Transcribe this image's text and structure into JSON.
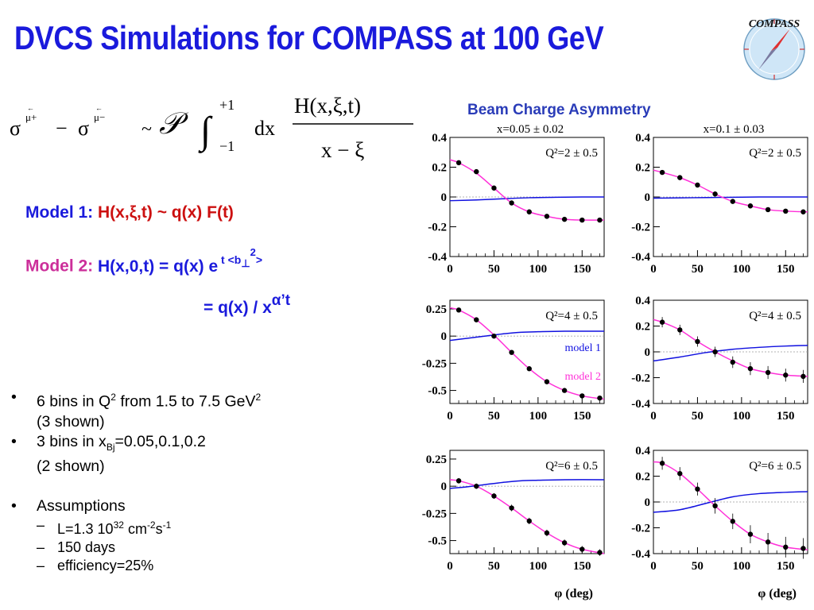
{
  "slide": {
    "title": "DVCS Simulations for COMPASS at 100 GeV",
    "logo_text": "COMPASS",
    "chart_header": "Beam Charge Asymmetry",
    "formula": {
      "sigma": "σ",
      "mu_plus": "μ+",
      "mu_minus": "μ−",
      "minus": "−",
      "arrow": "←",
      "approx": "~",
      "principal": "𝒫",
      "integral": "∫",
      "upper": "+1",
      "lower": "−1",
      "dx": "dx",
      "numerator": "H(x,ξ,t)",
      "denominator": "x − ξ"
    },
    "model1": {
      "label": "Model 1:",
      "expr": "H(x,ξ,t) ~ q(x) F(t)"
    },
    "model2": {
      "label": "Model 2:",
      "expr": "H(x,0,t) = q(x) e",
      "exp_prefix": "t <b",
      "exp_perp": "⊥",
      "exp_sq": "2",
      "exp_suffix": ">",
      "line2": "= q(x) / x",
      "line2_exp": "α’t"
    },
    "bullets": [
      {
        "dot": "•",
        "text_a": "6 bins in Q",
        "sup": "2",
        "text_b": " from 1.5 to 7.5 GeV",
        "sup2": "2",
        "line2": "(3 shown)"
      },
      {
        "dot": "•",
        "text_a": "3 bins in x",
        "sub": "Bj",
        "text_b": "=0.05,0.1,0.2",
        "line2": "(2 shown)"
      },
      {
        "dot": "•",
        "text": "Assumptions"
      }
    ],
    "sub_bullets": [
      {
        "dash": "–",
        "a": "L=1.3 10",
        "sup": "32",
        "b": " cm",
        "sup2": "-2",
        "c": "s",
        "sup3": "-1"
      },
      {
        "dash": "–",
        "a": "150 days"
      },
      {
        "dash": "–",
        "a": "efficiency=25%"
      }
    ]
  },
  "colors": {
    "title": "#1a1adc",
    "model1": "#1010e0",
    "model2": "#ff30d8",
    "points": "#000000",
    "guide": "#9a9a9a"
  },
  "chart_data": [
    {
      "type": "scatter",
      "panel": "row1-left",
      "xlabel": "",
      "xlim": [
        0,
        175
      ],
      "xticks": [
        0,
        50,
        100,
        150
      ],
      "ylim": [
        -0.4,
        0.4
      ],
      "yticks": [
        -0.4,
        -0.2,
        0,
        0.2,
        0.4
      ],
      "yticklabels": [
        "-0.4",
        "-0.2",
        "0",
        "0.2",
        "0.4"
      ],
      "top_label": "x=0.05 ± 0.02",
      "q2_label": "Q²=2 ± 0.5",
      "model1": {
        "x": [
          0,
          30,
          60,
          90,
          120,
          150,
          175
        ],
        "y": [
          -0.025,
          -0.02,
          -0.012,
          -0.005,
          -0.002,
          0.0,
          0.0
        ]
      },
      "model2": {
        "x": [
          0,
          10,
          30,
          50,
          70,
          90,
          110,
          130,
          150,
          175
        ],
        "y": [
          0.25,
          0.23,
          0.16,
          0.06,
          -0.04,
          -0.1,
          -0.13,
          -0.15,
          -0.155,
          -0.155
        ]
      },
      "points": {
        "x": [
          10,
          30,
          50,
          70,
          90,
          110,
          130,
          150,
          170
        ],
        "y": [
          0.23,
          0.17,
          0.06,
          -0.04,
          -0.1,
          -0.13,
          -0.15,
          -0.155,
          -0.155
        ],
        "err": [
          0.01,
          0.01,
          0.01,
          0.01,
          0.01,
          0.01,
          0.01,
          0.01,
          0.01
        ]
      }
    },
    {
      "type": "scatter",
      "panel": "row1-right",
      "xlabel": "",
      "xlim": [
        0,
        175
      ],
      "xticks": [
        0,
        50,
        100,
        150
      ],
      "ylim": [
        -0.4,
        0.4
      ],
      "yticks": [
        -0.4,
        -0.2,
        0,
        0.2,
        0.4
      ],
      "yticklabels": [
        "-0.4",
        "-0.2",
        "0",
        "0.2",
        "0.4"
      ],
      "top_label": "x=0.1 ± 0.03",
      "q2_label": "Q²=2 ± 0.5",
      "model1": {
        "x": [
          0,
          30,
          60,
          90,
          120,
          150,
          175
        ],
        "y": [
          -0.008,
          -0.006,
          -0.004,
          -0.002,
          0.0,
          0.0,
          0.0
        ]
      },
      "model2": {
        "x": [
          0,
          10,
          30,
          50,
          70,
          90,
          110,
          130,
          150,
          175
        ],
        "y": [
          0.18,
          0.165,
          0.13,
          0.08,
          0.02,
          -0.03,
          -0.06,
          -0.085,
          -0.095,
          -0.1
        ]
      },
      "points": {
        "x": [
          10,
          30,
          50,
          70,
          90,
          110,
          130,
          150,
          170
        ],
        "y": [
          0.165,
          0.13,
          0.08,
          0.02,
          -0.03,
          -0.06,
          -0.085,
          -0.095,
          -0.1
        ],
        "err": [
          0.012,
          0.012,
          0.012,
          0.012,
          0.012,
          0.012,
          0.012,
          0.012,
          0.012
        ]
      }
    },
    {
      "type": "scatter",
      "panel": "row2-left",
      "xlabel": "",
      "xlim": [
        0,
        175
      ],
      "xticks": [
        0,
        50,
        100,
        150
      ],
      "ylim": [
        -0.62,
        0.33
      ],
      "yticks": [
        -0.5,
        -0.25,
        0,
        0.25
      ],
      "yticklabels": [
        "-0.5",
        "-0.25",
        "0",
        "0.25"
      ],
      "q2_label": "Q²=4 ± 0.5",
      "legend": [
        "model 1",
        "model 2"
      ],
      "model1": {
        "x": [
          0,
          20,
          40,
          60,
          80,
          100,
          130,
          175
        ],
        "y": [
          -0.04,
          -0.02,
          0.0,
          0.02,
          0.035,
          0.04,
          0.045,
          0.045
        ]
      },
      "model2": {
        "x": [
          0,
          10,
          30,
          50,
          70,
          90,
          110,
          130,
          150,
          175
        ],
        "y": [
          0.26,
          0.24,
          0.15,
          0.01,
          -0.15,
          -0.3,
          -0.42,
          -0.5,
          -0.55,
          -0.58
        ]
      },
      "points": {
        "x": [
          10,
          30,
          50,
          70,
          90,
          110,
          130,
          150,
          170
        ],
        "y": [
          0.24,
          0.15,
          0.0,
          -0.15,
          -0.3,
          -0.42,
          -0.5,
          -0.55,
          -0.57
        ],
        "err": [
          0.015,
          0.015,
          0.015,
          0.015,
          0.015,
          0.015,
          0.015,
          0.015,
          0.015
        ]
      }
    },
    {
      "type": "scatter",
      "panel": "row2-right",
      "xlabel": "",
      "xlim": [
        0,
        175
      ],
      "xticks": [
        0,
        50,
        100,
        150
      ],
      "ylim": [
        -0.4,
        0.4
      ],
      "yticks": [
        -0.4,
        -0.2,
        0,
        0.2,
        0.4
      ],
      "yticklabels": [
        "-0.4",
        "-0.2",
        "0",
        "0.2",
        "0.4"
      ],
      "q2_label": "Q²=4 ± 0.5",
      "model1": {
        "x": [
          0,
          30,
          60,
          90,
          120,
          150,
          175
        ],
        "y": [
          -0.07,
          -0.04,
          -0.005,
          0.02,
          0.035,
          0.045,
          0.05
        ]
      },
      "model2": {
        "x": [
          0,
          10,
          30,
          50,
          70,
          90,
          110,
          130,
          150,
          175
        ],
        "y": [
          0.25,
          0.23,
          0.17,
          0.08,
          0.0,
          -0.07,
          -0.13,
          -0.16,
          -0.18,
          -0.19
        ]
      },
      "points": {
        "x": [
          10,
          30,
          50,
          70,
          90,
          110,
          130,
          150,
          170
        ],
        "y": [
          0.23,
          0.17,
          0.08,
          0.0,
          -0.08,
          -0.13,
          -0.16,
          -0.18,
          -0.19
        ],
        "err": [
          0.04,
          0.04,
          0.04,
          0.04,
          0.045,
          0.05,
          0.05,
          0.05,
          0.05
        ]
      }
    },
    {
      "type": "scatter",
      "panel": "row3-left",
      "xlabel": "φ (deg)",
      "xlim": [
        0,
        175
      ],
      "xticks": [
        0,
        50,
        100,
        150
      ],
      "ylim": [
        -0.62,
        0.33
      ],
      "yticks": [
        -0.5,
        -0.25,
        0,
        0.25
      ],
      "yticklabels": [
        "-0.5",
        "-0.25",
        "0",
        "0.25"
      ],
      "q2_label": "Q²=6 ± 0.5",
      "model1": {
        "x": [
          0,
          20,
          40,
          60,
          80,
          100,
          130,
          175
        ],
        "y": [
          -0.02,
          -0.005,
          0.015,
          0.035,
          0.05,
          0.055,
          0.06,
          0.06
        ]
      },
      "model2": {
        "x": [
          0,
          10,
          30,
          50,
          70,
          90,
          110,
          130,
          150,
          175
        ],
        "y": [
          0.06,
          0.05,
          0.0,
          -0.09,
          -0.2,
          -0.32,
          -0.43,
          -0.52,
          -0.58,
          -0.62
        ]
      },
      "points": {
        "x": [
          10,
          30,
          50,
          70,
          90,
          110,
          130,
          150,
          170
        ],
        "y": [
          0.05,
          0.0,
          -0.09,
          -0.2,
          -0.32,
          -0.43,
          -0.52,
          -0.58,
          -0.61
        ],
        "err": [
          0.025,
          0.025,
          0.025,
          0.03,
          0.03,
          0.03,
          0.03,
          0.03,
          0.03
        ]
      }
    },
    {
      "type": "scatter",
      "panel": "row3-right",
      "xlabel": "φ (deg)",
      "xlim": [
        0,
        175
      ],
      "xticks": [
        0,
        50,
        100,
        150
      ],
      "ylim": [
        -0.4,
        0.4
      ],
      "yticks": [
        -0.4,
        -0.2,
        0,
        0.2,
        0.4
      ],
      "yticklabels": [
        "-0.4",
        "-0.2",
        "0",
        "0.2",
        "0.4"
      ],
      "q2_label": "Q²=6 ± 0.5",
      "model1": {
        "x": [
          0,
          30,
          60,
          90,
          120,
          150,
          175
        ],
        "y": [
          -0.08,
          -0.06,
          -0.01,
          0.04,
          0.065,
          0.075,
          0.08
        ]
      },
      "model2": {
        "x": [
          0,
          10,
          30,
          50,
          70,
          90,
          110,
          130,
          150,
          175
        ],
        "y": [
          0.31,
          0.3,
          0.22,
          0.1,
          -0.03,
          -0.15,
          -0.25,
          -0.31,
          -0.35,
          -0.37
        ]
      },
      "points": {
        "x": [
          10,
          30,
          50,
          70,
          90,
          110,
          130,
          150,
          170
        ],
        "y": [
          0.3,
          0.22,
          0.1,
          -0.03,
          -0.15,
          -0.25,
          -0.31,
          -0.35,
          -0.36
        ],
        "err": [
          0.05,
          0.05,
          0.05,
          0.06,
          0.06,
          0.07,
          0.07,
          0.08,
          0.08
        ]
      }
    }
  ]
}
